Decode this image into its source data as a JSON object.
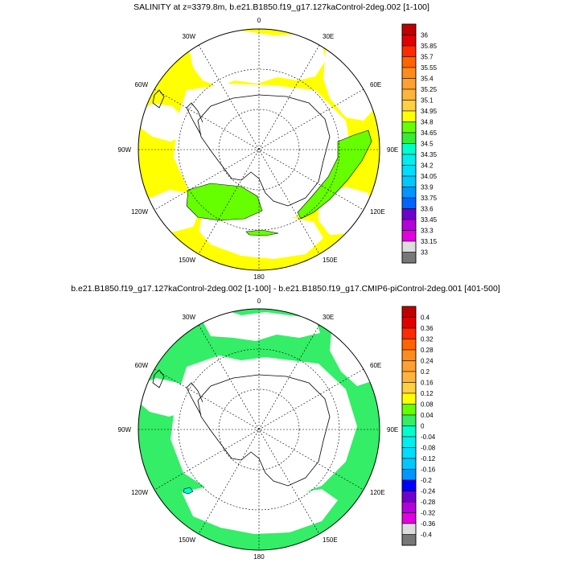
{
  "panels": [
    {
      "title": "SALINITY at z=3379.8m, b.e21.B1850.f19_g17.127kaControl-2deg.002 [1-100]",
      "lon_labels": [
        "0",
        "30E",
        "60E",
        "90E",
        "120E",
        "150E",
        "180",
        "150W",
        "120W",
        "90W",
        "60W",
        "30W"
      ],
      "colorbar": {
        "labels": [
          "36",
          "35.85",
          "35.7",
          "35.55",
          "35.4",
          "35.25",
          "35.1",
          "34.95",
          "34.8",
          "34.65",
          "34.5",
          "34.35",
          "34.2",
          "34.05",
          "33.9",
          "33.75",
          "33.6",
          "33.45",
          "33.3",
          "33.15",
          "33"
        ],
        "colors": [
          "#c00000",
          "#e00000",
          "#ff2a00",
          "#ff6400",
          "#ff8c1a",
          "#ffa030",
          "#ffb43c",
          "#ffd040",
          "#ffff00",
          "#66ff00",
          "#33ee33",
          "#00ffcc",
          "#00eeee",
          "#00ddff",
          "#00c8ff",
          "#0096ff",
          "#0064ff",
          "#7000cc",
          "#b400dc",
          "#e000e0",
          "#dddddd",
          "#777777"
        ]
      },
      "ocean_color": "#ffff00",
      "anomaly_color": "#66ff00"
    },
    {
      "title": "b.e21.B1850.f19_g17.127kaControl-2deg.002 [1-100] - b.e21.B1850.f19_g17.CMIP6-piControl-2deg.001 [401-500]",
      "lon_labels": [
        "0",
        "30E",
        "60E",
        "90E",
        "120E",
        "150E",
        "180",
        "150W",
        "120W",
        "90W",
        "60W",
        "30W"
      ],
      "colorbar": {
        "labels": [
          "0.4",
          "0.36",
          "0.32",
          "0.28",
          "0.24",
          "0.2",
          "0.16",
          "0.12",
          "0.08",
          "0.04",
          "0",
          "-0.04",
          "-0.08",
          "-0.12",
          "-0.16",
          "-0.2",
          "-0.24",
          "-0.28",
          "-0.32",
          "-0.36",
          "-0.4"
        ],
        "colors": [
          "#c00000",
          "#e00000",
          "#ff2a00",
          "#ff6400",
          "#ff8c1a",
          "#ffa030",
          "#ffb43c",
          "#ffd040",
          "#ffff00",
          "#66ff00",
          "#33ee66",
          "#00ffcc",
          "#00eeee",
          "#00ddff",
          "#00c8ff",
          "#0096ff",
          "#0000ff",
          "#7000cc",
          "#b400dc",
          "#e000e0",
          "#dddddd",
          "#777777"
        ]
      },
      "ocean_color": "#33ee66",
      "anomaly_color": "#00ffcc"
    }
  ]
}
